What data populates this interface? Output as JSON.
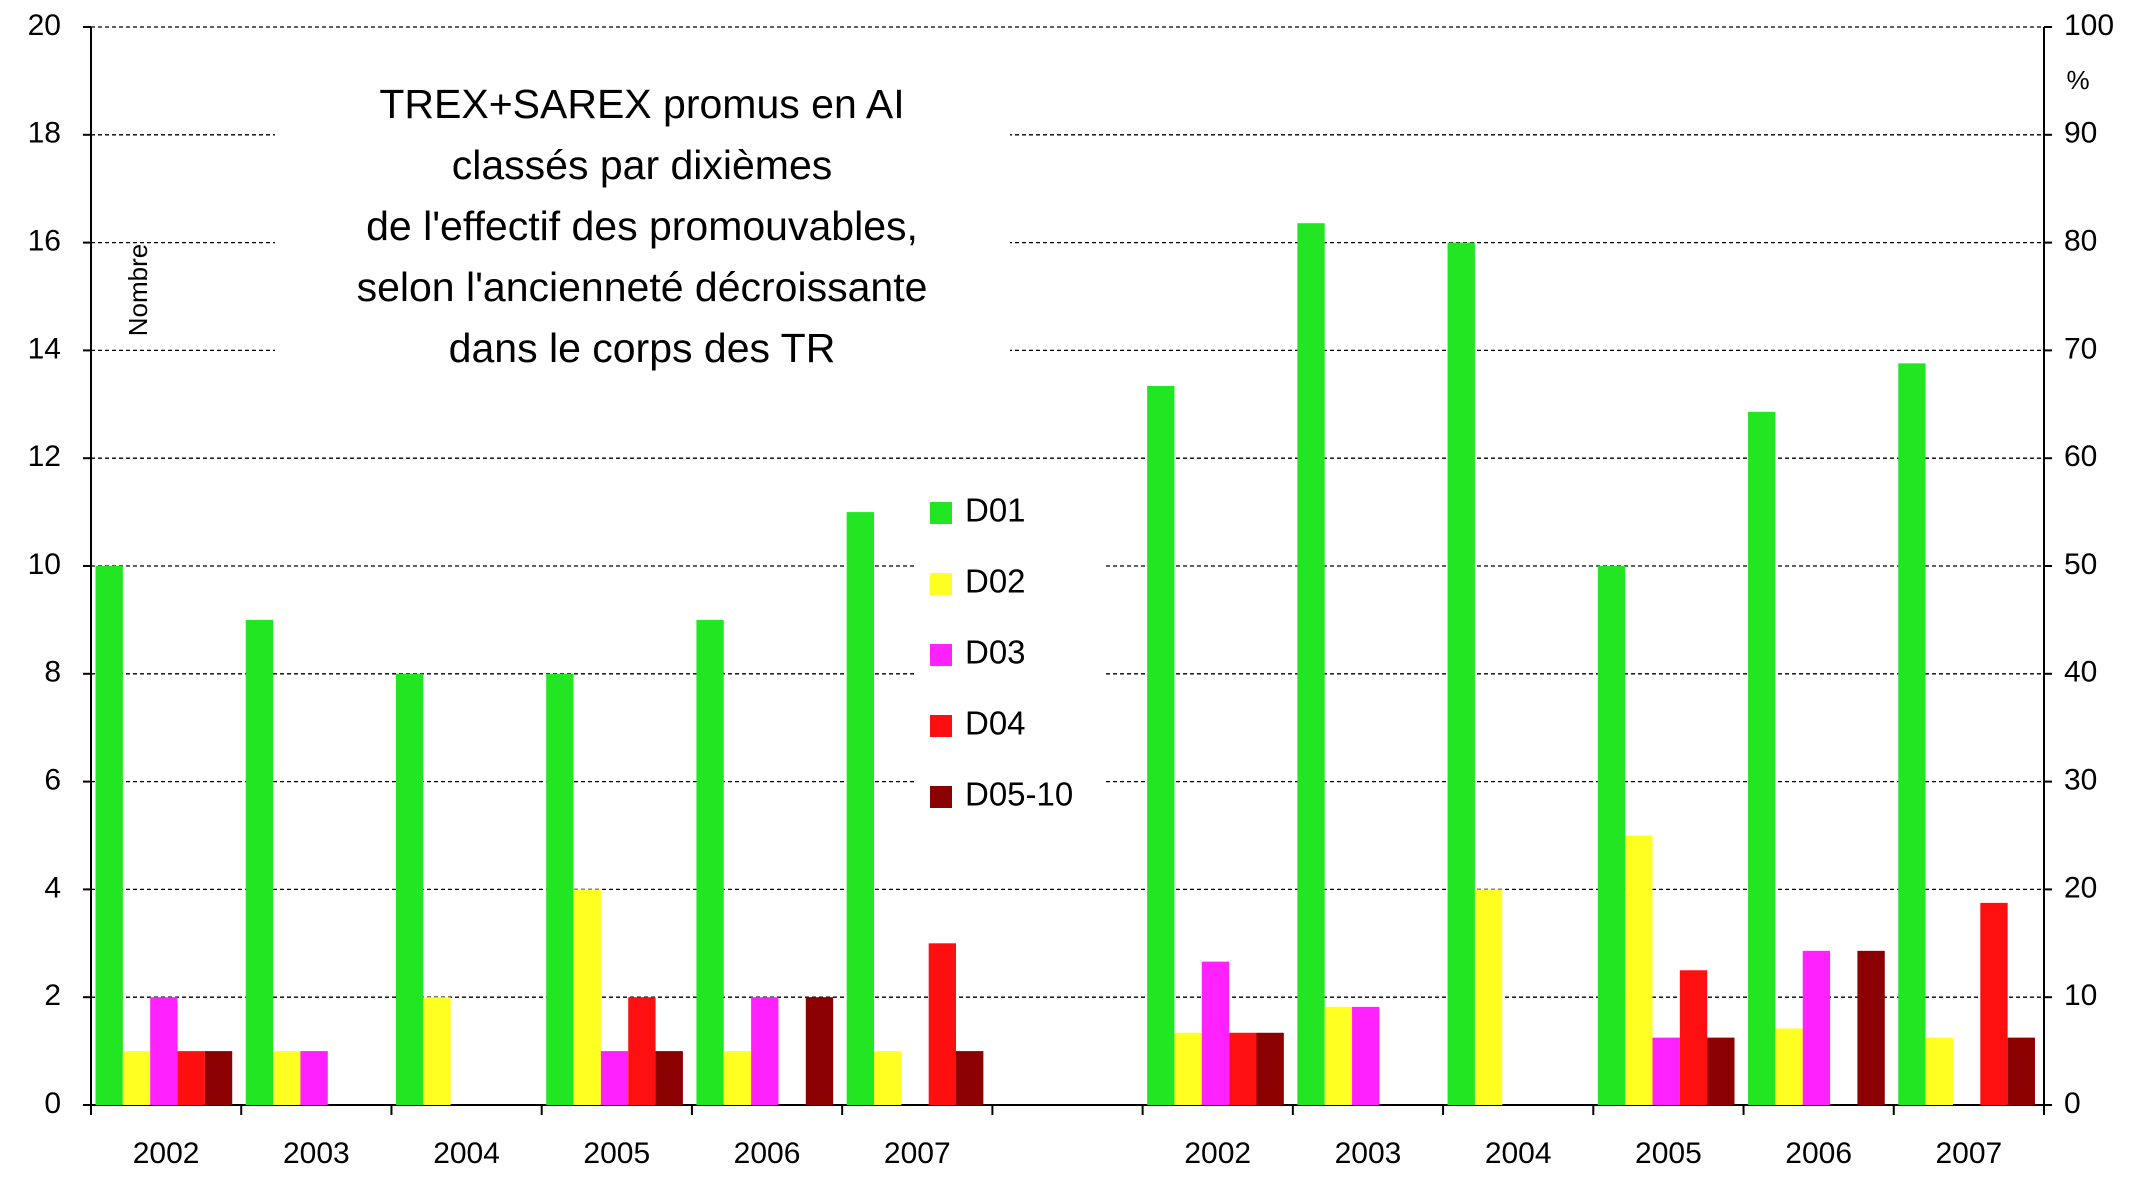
{
  "chart_data": [
    {
      "type": "bar",
      "title": [
        "TREX+SAREX promus en AI",
        "classés par dixièmes",
        "de l'effectif des promouvables,",
        "selon l'ancienneté décroissante",
        "dans le corps des TR"
      ],
      "ylabel": "Nombre",
      "categories": [
        "2002",
        "2003",
        "2004",
        "2005",
        "2006",
        "2007"
      ],
      "ylim": [
        0,
        20
      ],
      "yticks": [
        0,
        2,
        4,
        6,
        8,
        10,
        12,
        14,
        16,
        18,
        20
      ],
      "grid": true,
      "series": [
        {
          "name": "D01",
          "color": "#22e622",
          "values": [
            10,
            9,
            8,
            8,
            9,
            11
          ]
        },
        {
          "name": "D02",
          "color": "#ffff22",
          "values": [
            1,
            1,
            2,
            4,
            1,
            1
          ]
        },
        {
          "name": "D03",
          "color": "#ff22ff",
          "values": [
            2,
            1,
            0,
            1,
            2,
            0
          ]
        },
        {
          "name": "D04",
          "color": "#ff1010",
          "values": [
            1,
            0,
            0,
            2,
            0,
            3
          ]
        },
        {
          "name": "D05-10",
          "color": "#8b0000",
          "values": [
            1,
            0,
            0,
            1,
            2,
            1
          ]
        }
      ]
    },
    {
      "type": "bar",
      "y2label": "%",
      "categories": [
        "2002",
        "2003",
        "2004",
        "2005",
        "2006",
        "2007"
      ],
      "y2lim": [
        0,
        100
      ],
      "y2ticks": [
        0,
        10,
        20,
        30,
        40,
        50,
        60,
        70,
        80,
        90,
        100
      ],
      "series": [
        {
          "color": "#22e622",
          "axis": "y2",
          "values": [
            66.7,
            81.8,
            80,
            50,
            64.3,
            68.8
          ]
        },
        {
          "color": "#ffff22",
          "axis": "y2",
          "values": [
            6.7,
            9.1,
            20,
            25,
            7.1,
            6.25
          ]
        },
        {
          "color": "#ff22ff",
          "axis": "y2",
          "values": [
            13.3,
            9.1,
            0,
            6.25,
            14.3,
            0
          ]
        },
        {
          "color": "#ff1010",
          "axis": "y2",
          "values": [
            6.7,
            0,
            0,
            12.5,
            0,
            18.75
          ]
        },
        {
          "color": "#8b0000",
          "axis": "y2",
          "values": [
            6.7,
            0,
            0,
            6.25,
            14.3,
            6.25
          ]
        }
      ]
    }
  ]
}
